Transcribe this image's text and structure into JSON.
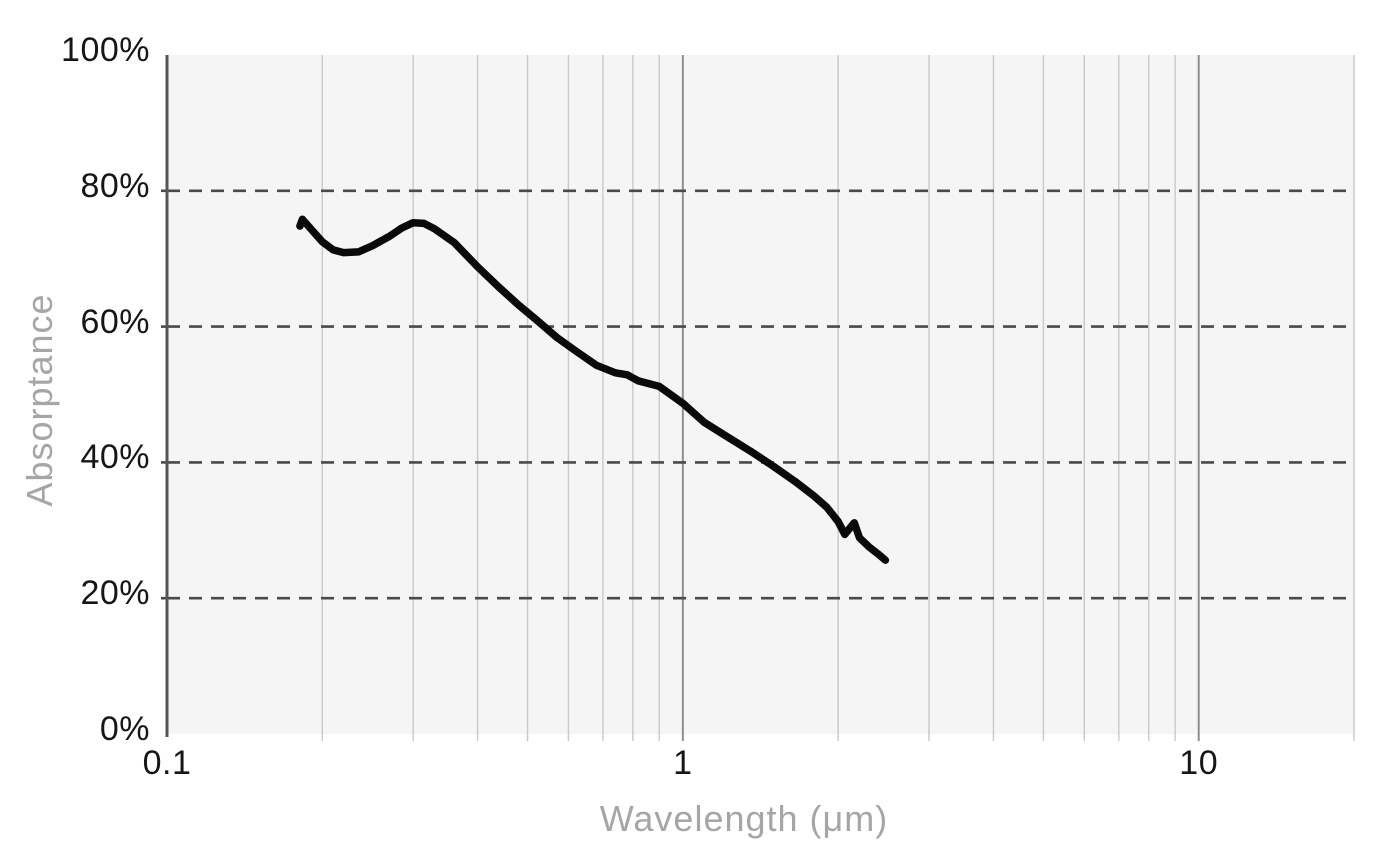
{
  "chart_data": {
    "type": "line",
    "title": "",
    "xlabel": "Wavelength (μm)",
    "ylabel": "Absorptance",
    "x_scale": "log",
    "xlim": [
      0.1,
      20
    ],
    "ylim": [
      0,
      100
    ],
    "grid": true,
    "legend": false,
    "x_ticks": [
      {
        "value": 0.1,
        "label": "0.1"
      },
      {
        "value": 1,
        "label": "1"
      },
      {
        "value": 10,
        "label": "10"
      }
    ],
    "y_ticks": [
      {
        "value": 0,
        "label": "0%"
      },
      {
        "value": 20,
        "label": "20%"
      },
      {
        "value": 40,
        "label": "40%"
      },
      {
        "value": 60,
        "label": "60%"
      },
      {
        "value": 80,
        "label": "80%"
      },
      {
        "value": 100,
        "label": "100%"
      }
    ],
    "y_dashed_gridlines": [
      20,
      40,
      60,
      80
    ],
    "x_minor_gridlines": [
      0.2,
      0.3,
      0.4,
      0.5,
      0.6,
      0.7,
      0.8,
      0.9,
      2,
      3,
      4,
      5,
      6,
      7,
      8,
      9,
      20
    ],
    "x_major_gridlines": [
      1,
      10
    ],
    "series": [
      {
        "name": "Absorptance",
        "points": [
          [
            0.181,
            74.8
          ],
          [
            0.183,
            75.8
          ],
          [
            0.19,
            74.4
          ],
          [
            0.2,
            72.5
          ],
          [
            0.21,
            71.3
          ],
          [
            0.22,
            70.9
          ],
          [
            0.235,
            71.0
          ],
          [
            0.25,
            71.9
          ],
          [
            0.27,
            73.3
          ],
          [
            0.285,
            74.5
          ],
          [
            0.3,
            75.3
          ],
          [
            0.315,
            75.2
          ],
          [
            0.33,
            74.4
          ],
          [
            0.36,
            72.4
          ],
          [
            0.4,
            68.8
          ],
          [
            0.44,
            65.8
          ],
          [
            0.48,
            63.2
          ],
          [
            0.52,
            61.0
          ],
          [
            0.57,
            58.4
          ],
          [
            0.62,
            56.4
          ],
          [
            0.68,
            54.3
          ],
          [
            0.74,
            53.2
          ],
          [
            0.78,
            52.9
          ],
          [
            0.82,
            52.0
          ],
          [
            0.9,
            51.2
          ],
          [
            1.0,
            48.7
          ],
          [
            1.1,
            45.9
          ],
          [
            1.2,
            44.1
          ],
          [
            1.35,
            41.7
          ],
          [
            1.5,
            39.4
          ],
          [
            1.65,
            37.2
          ],
          [
            1.8,
            35.0
          ],
          [
            1.9,
            33.4
          ],
          [
            2.0,
            31.3
          ],
          [
            2.06,
            29.4
          ],
          [
            2.15,
            31.1
          ],
          [
            2.2,
            28.9
          ],
          [
            2.3,
            27.5
          ],
          [
            2.4,
            26.4
          ],
          [
            2.47,
            25.6
          ]
        ]
      }
    ]
  },
  "colors": {
    "page_background": "#ffffff",
    "plot_background": "#f5f5f5",
    "minor_gridline": "#c9c9c9",
    "major_gridline": "#8f8f8f",
    "axis_line": "#56565a",
    "dashed_gridline": "#4a4a4a",
    "curve": "#0a0a0a",
    "tick_label": "#161616",
    "axis_title": "#a6a6a6"
  }
}
